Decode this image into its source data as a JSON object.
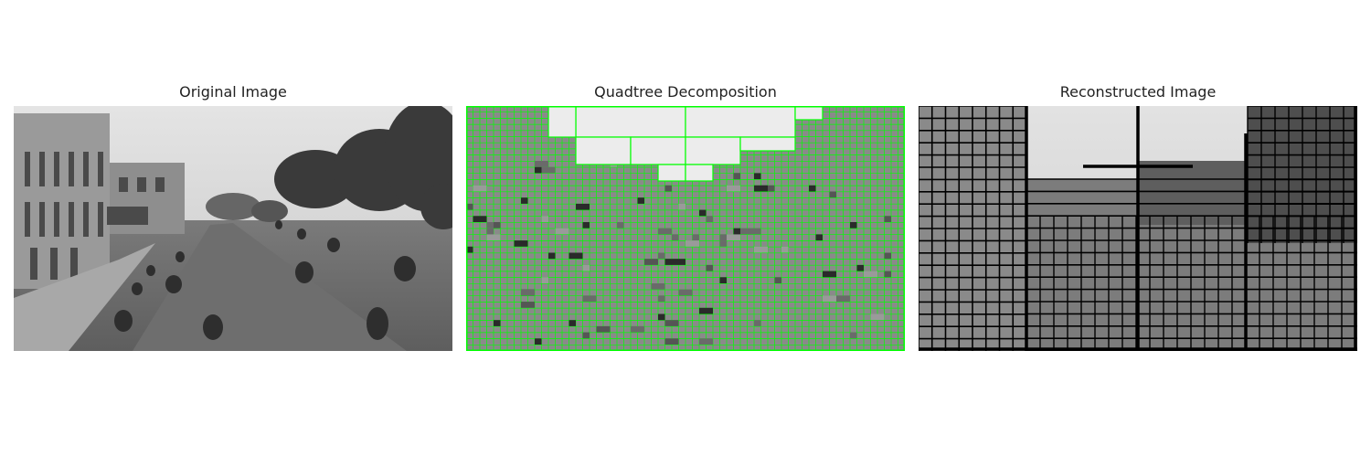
{
  "figure": {
    "panels": [
      {
        "title": "Original Image"
      },
      {
        "title": "Quadtree Decomposition"
      },
      {
        "title": "Reconstructed Image"
      }
    ]
  },
  "colors": {
    "background": "#ffffff",
    "title_text": "#222222",
    "grid_line": "#00ff00",
    "block_edge": "#000000"
  }
}
